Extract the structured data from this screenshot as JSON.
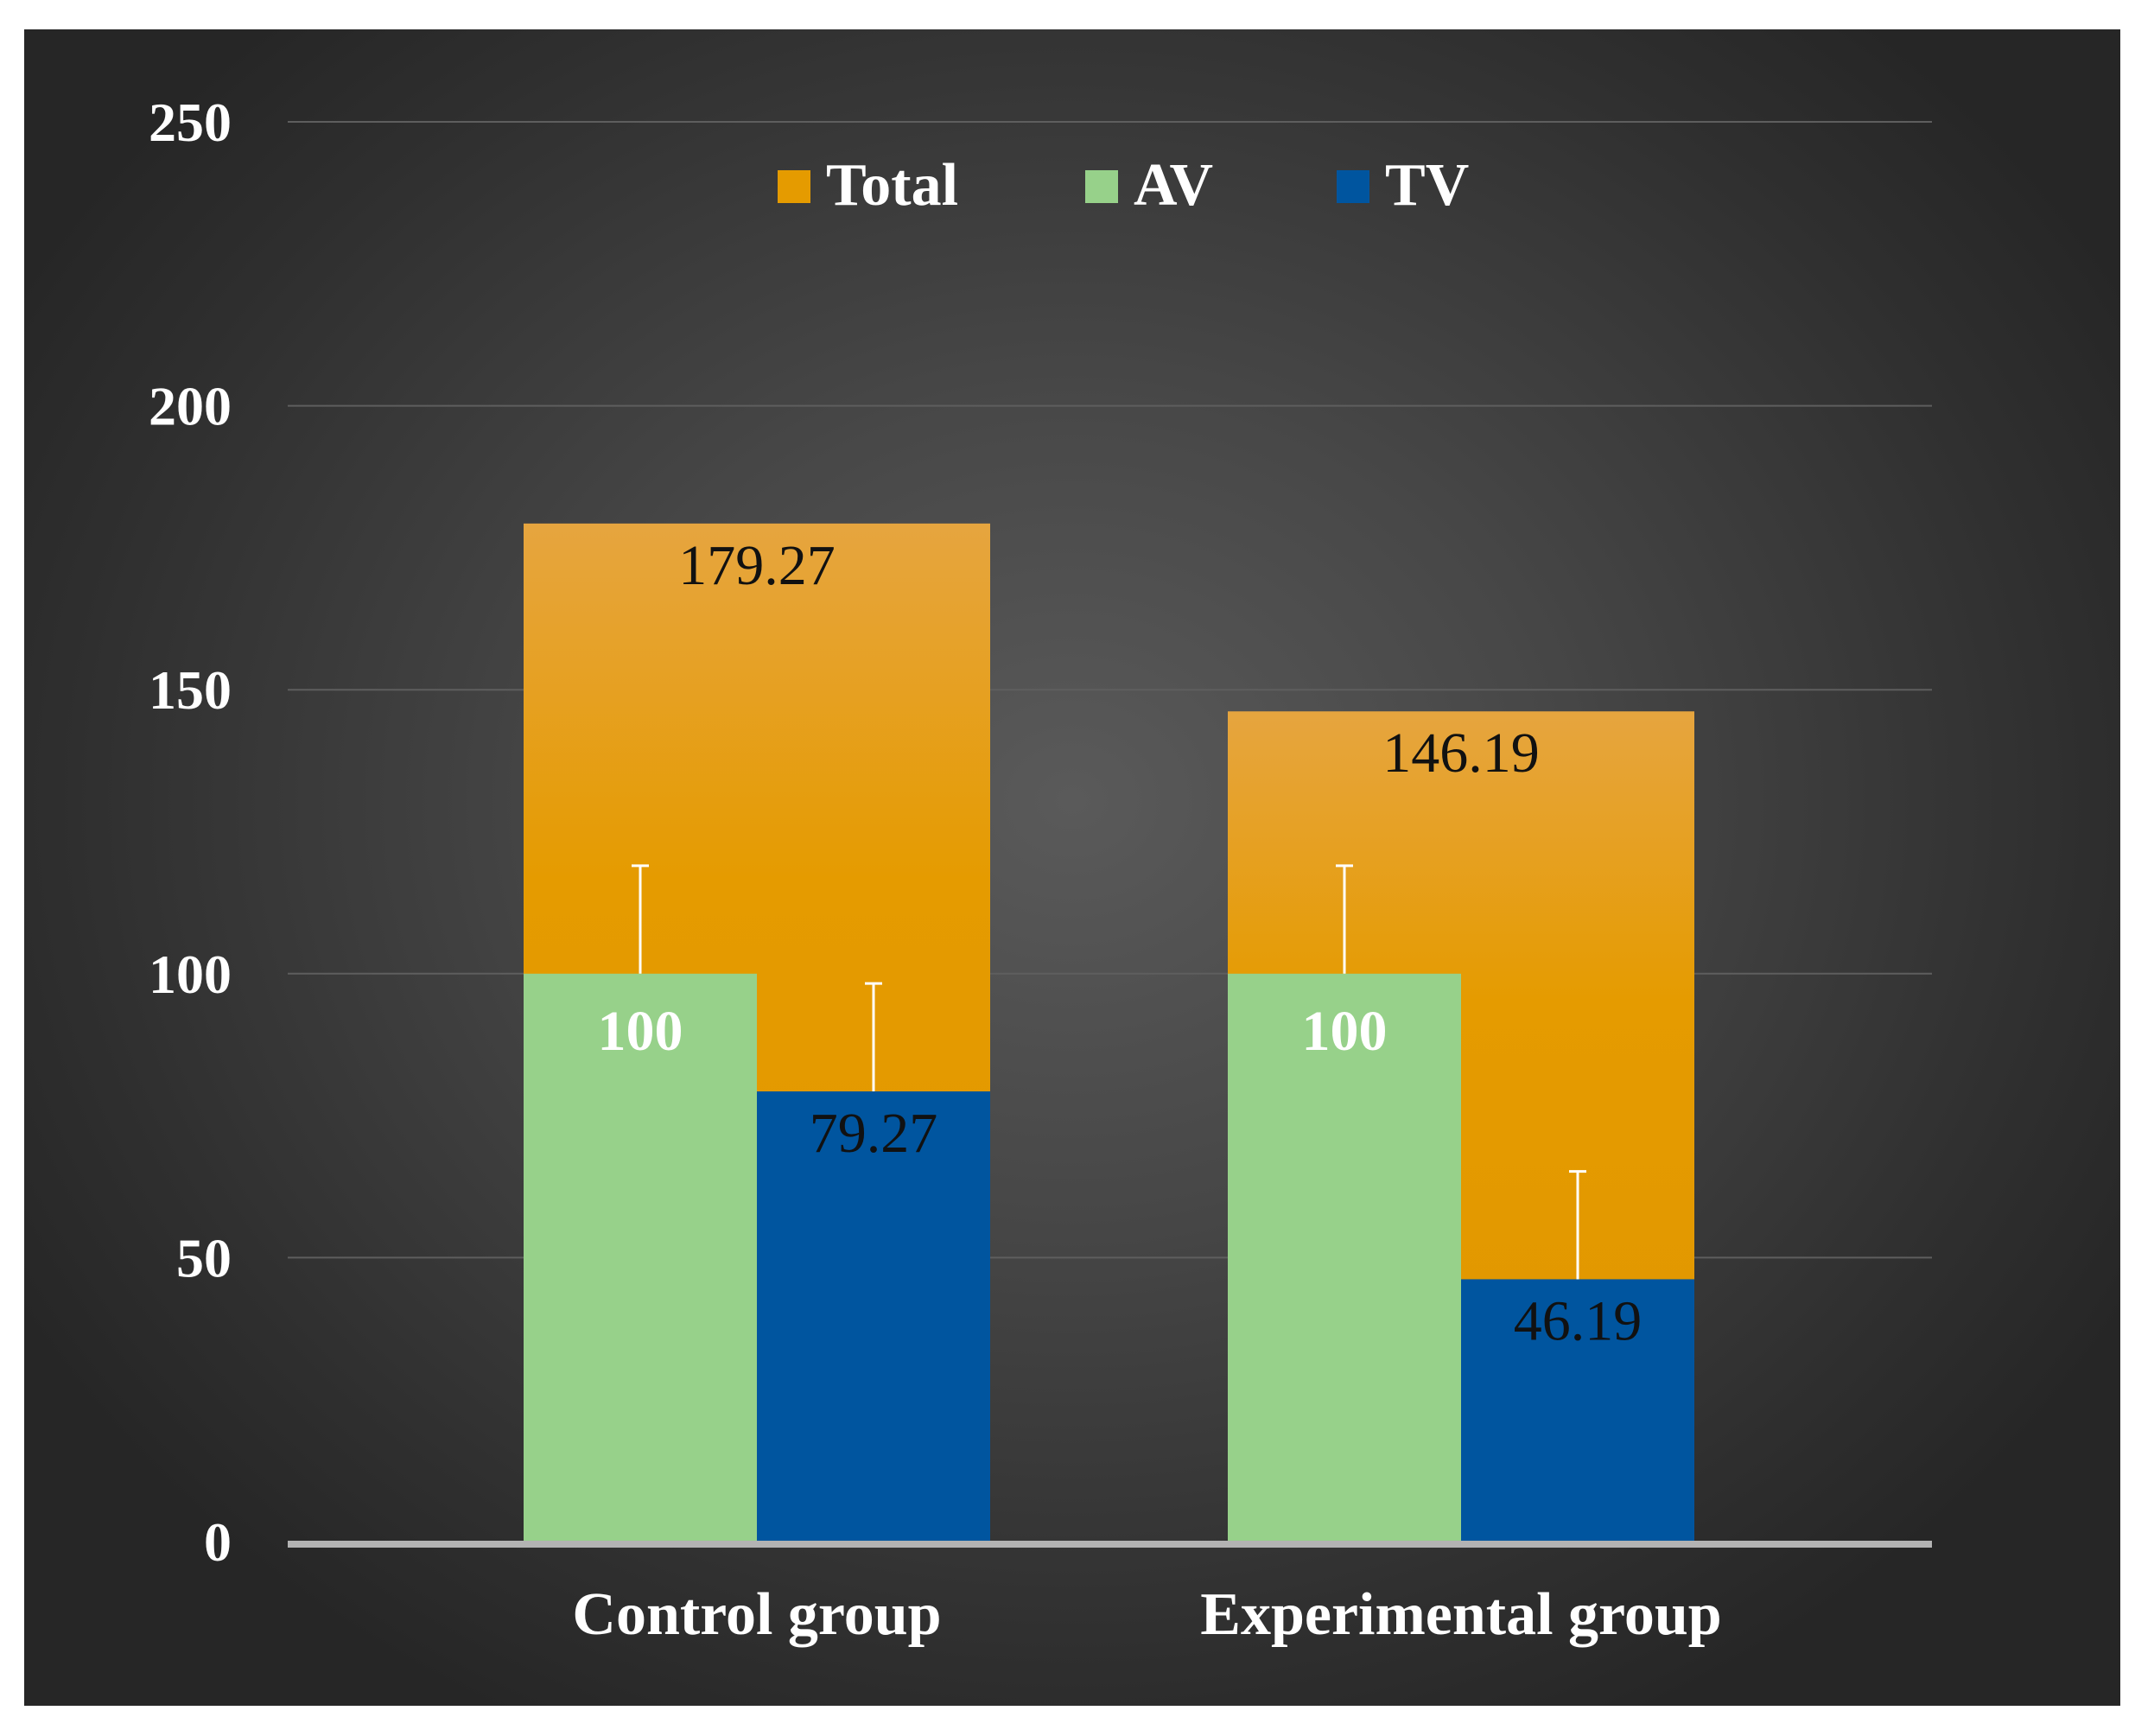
{
  "chart_data": {
    "type": "bar",
    "title": "",
    "xlabel": "",
    "ylabel": "",
    "ylim": [
      0,
      250
    ],
    "yticks": [
      0,
      50,
      100,
      150,
      200,
      250
    ],
    "grid": true,
    "legend_position": "top-center",
    "categories": [
      "Control group",
      "Experimental group"
    ],
    "series": [
      {
        "name": "Total",
        "color": "#e59b00",
        "values": [
          179.27,
          146.19
        ],
        "labels": [
          "179.27",
          "146.19"
        ]
      },
      {
        "name": "AV",
        "color": "#97d18a",
        "values": [
          100,
          100
        ],
        "labels": [
          "100",
          "100"
        ],
        "error_plus": [
          19,
          19
        ]
      },
      {
        "name": "TV",
        "color": "#00559f",
        "values": [
          79.27,
          46.19
        ],
        "labels": [
          "79.27",
          "46.19"
        ],
        "error_plus": [
          19,
          19
        ]
      }
    ]
  }
}
